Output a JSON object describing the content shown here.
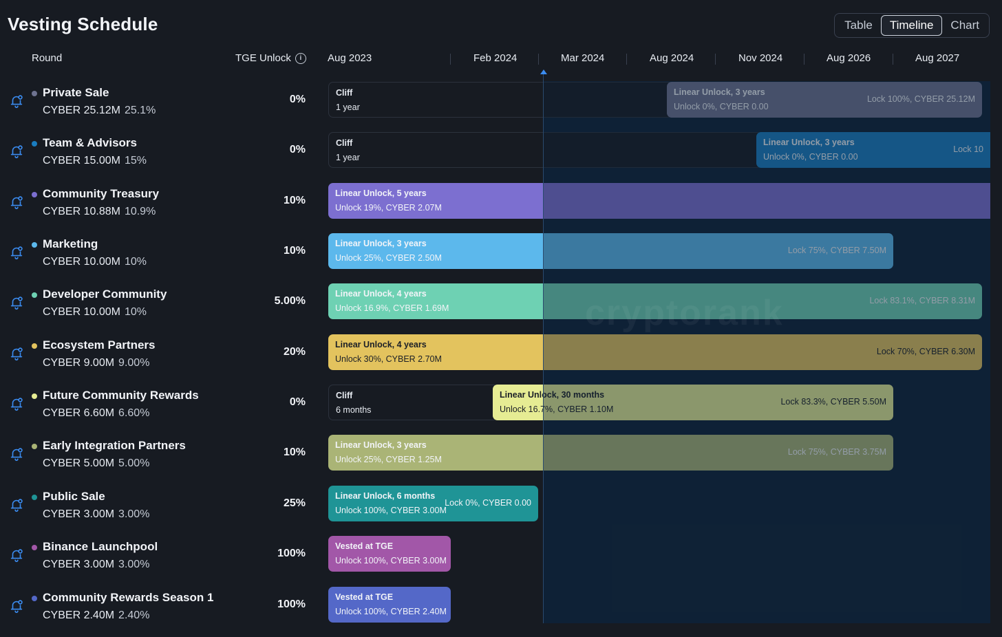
{
  "page": {
    "title": "Vesting Schedule"
  },
  "view_toggle": {
    "options": [
      "Table",
      "Timeline",
      "Chart"
    ],
    "active": "Timeline"
  },
  "columns": {
    "round": "Round",
    "tge_unlock": "TGE Unlock"
  },
  "timeline_dates": [
    "Aug 2023",
    "Feb 2024",
    "Mar 2024",
    "Aug 2024",
    "Nov 2024",
    "Aug 2026",
    "Aug 2027"
  ],
  "watermark": "cryptorank",
  "rounds": [
    {
      "name": "Private Sale",
      "amount": "CYBER 25.12M",
      "pct": "25.1%",
      "tge": "0%",
      "color": "#6e7390",
      "cliff": {
        "l1": "Cliff",
        "l2": "1 year"
      },
      "unlock": {
        "l1": "Linear Unlock, 3 years",
        "l2": "Unlock 0%, CYBER 0.00",
        "lock": "Lock 100%, CYBER 25.12M"
      }
    },
    {
      "name": "Team & Advisors",
      "amount": "CYBER 15.00M",
      "pct": "15%",
      "tge": "0%",
      "color": "#1a7dc0",
      "cliff": {
        "l1": "Cliff",
        "l2": "1 year"
      },
      "unlock": {
        "l1": "Linear Unlock, 3 years",
        "l2": "Unlock 0%, CYBER 0.00",
        "lock": "Lock 10"
      }
    },
    {
      "name": "Community Treasury",
      "amount": "CYBER 10.88M",
      "pct": "10.9%",
      "tge": "10%",
      "color": "#7c6fd0",
      "unlock": {
        "l1": "Linear Unlock, 5 years",
        "l2": "Unlock 19%, CYBER 2.07M",
        "lock": ""
      }
    },
    {
      "name": "Marketing",
      "amount": "CYBER 10.00M",
      "pct": "10%",
      "tge": "10%",
      "color": "#5cb8ec",
      "unlock": {
        "l1": "Linear Unlock, 3 years",
        "l2": "Unlock 25%, CYBER 2.50M",
        "lock": "Lock 75%, CYBER 7.50M"
      }
    },
    {
      "name": "Developer Community",
      "amount": "CYBER 10.00M",
      "pct": "10%",
      "tge": "5.00%",
      "color": "#6ed1b3",
      "unlock": {
        "l1": "Linear Unlock, 4 years",
        "l2": "Unlock 16.9%, CYBER 1.69M",
        "lock": "Lock 83.1%, CYBER 8.31M"
      }
    },
    {
      "name": "Ecosystem Partners",
      "amount": "CYBER 9.00M",
      "pct": "9.00%",
      "tge": "20%",
      "color": "#e3c35e",
      "unlock": {
        "l1": "Linear Unlock, 4 years",
        "l2": "Unlock 30%, CYBER 2.70M",
        "lock": "Lock 70%, CYBER 6.30M"
      }
    },
    {
      "name": "Future Community Rewards",
      "amount": "CYBER 6.60M",
      "pct": "6.60%",
      "tge": "0%",
      "color": "#e6ec93",
      "cliff": {
        "l1": "Cliff",
        "l2": "6 months"
      },
      "unlock": {
        "l1": "Linear Unlock, 30 months",
        "l2": "Unlock 16.7%, CYBER 1.10M",
        "lock": "Lock 83.3%, CYBER 5.50M"
      }
    },
    {
      "name": "Early Integration Partners",
      "amount": "CYBER 5.00M",
      "pct": "5.00%",
      "tge": "10%",
      "color": "#aab476",
      "unlock": {
        "l1": "Linear Unlock, 3 years",
        "l2": "Unlock 25%, CYBER 1.25M",
        "lock": "Lock 75%, CYBER 3.75M"
      }
    },
    {
      "name": "Public Sale",
      "amount": "CYBER 3.00M",
      "pct": "3.00%",
      "tge": "25%",
      "color": "#1f9496",
      "unlock": {
        "l1": "Linear Unlock, 6 months",
        "l2": "Unlock 100%, CYBER 3.00M",
        "lock": "Lock 0%, CYBER 0.00"
      }
    },
    {
      "name": "Binance Launchpool",
      "amount": "CYBER 3.00M",
      "pct": "3.00%",
      "tge": "100%",
      "color": "#a257a8",
      "unlock": {
        "l1": "Vested at TGE",
        "l2": "Unlock 100%, CYBER 3.00M",
        "lock": ""
      }
    },
    {
      "name": "Community Rewards Season 1",
      "amount": "CYBER 2.40M",
      "pct": "2.40%",
      "tge": "100%",
      "color": "#5468c8",
      "unlock": {
        "l1": "Vested at TGE",
        "l2": "Unlock 100%, CYBER 2.40M",
        "lock": ""
      }
    }
  ]
}
